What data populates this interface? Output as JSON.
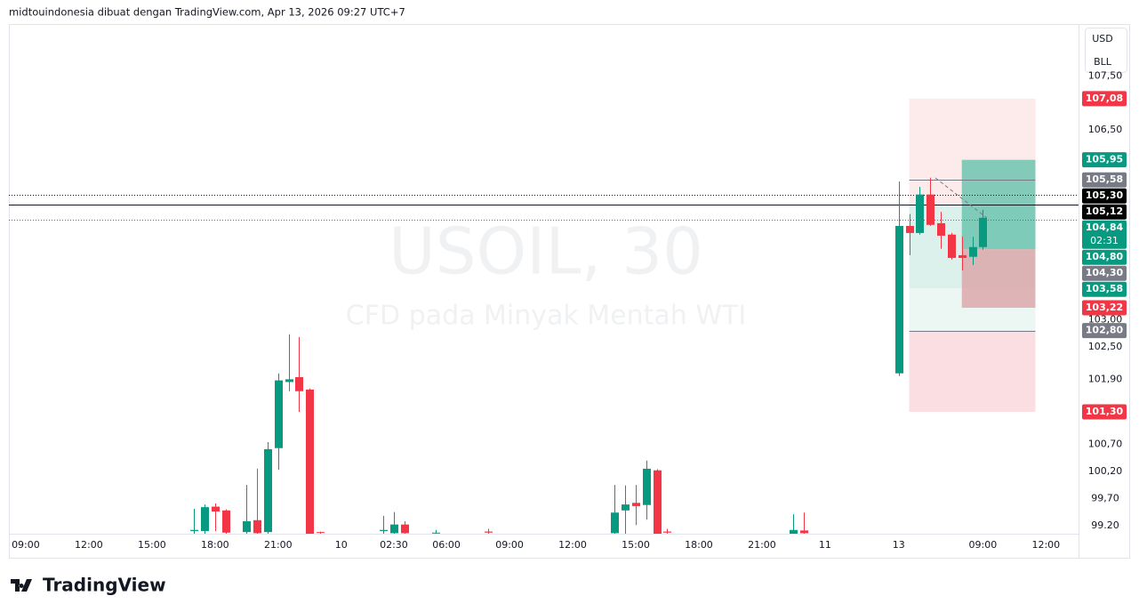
{
  "header": "midtouindonesia dibuat dengan TradingView.com, Apr 13, 2026 09:27 UTC+7",
  "footer": "TradingView",
  "currency": [
    "USD",
    "BLL"
  ],
  "chart_data": {
    "type": "candlestick",
    "title": "USOIL, 30",
    "subtitle": "CFD pada Minyak Mentah WTI",
    "up_color": "#089981",
    "down_color": "#f23645",
    "xlim": [
      -1.6,
      100.1
    ],
    "ylim": [
      99.05,
      108.44
    ],
    "xticks": [
      {
        "value": 0,
        "label": "09:00"
      },
      {
        "value": 6,
        "label": "12:00"
      },
      {
        "value": 12,
        "label": "15:00"
      },
      {
        "value": 18,
        "label": "18:00"
      },
      {
        "value": 24,
        "label": "21:00"
      },
      {
        "value": 30,
        "label": "10"
      },
      {
        "value": 35,
        "label": "02:30"
      },
      {
        "value": 40,
        "label": "06:00"
      },
      {
        "value": 46,
        "label": "09:00"
      },
      {
        "value": 52,
        "label": "12:00"
      },
      {
        "value": 58,
        "label": "15:00"
      },
      {
        "value": 64,
        "label": "18:00"
      },
      {
        "value": 70,
        "label": "21:00"
      },
      {
        "value": 76,
        "label": "11"
      },
      {
        "value": 83,
        "label": "13"
      },
      {
        "value": 91,
        "label": "09:00"
      },
      {
        "value": 97,
        "label": "12:00"
      }
    ],
    "yticks": [
      {
        "value": 107.5,
        "label": "107,50"
      },
      {
        "value": 106.5,
        "label": "106,50"
      },
      {
        "value": 103,
        "label": "103,00"
      },
      {
        "value": 102.5,
        "label": "102,50"
      },
      {
        "value": 101.9,
        "label": "101,90"
      },
      {
        "value": 100.7,
        "label": "100,70"
      },
      {
        "value": 100.2,
        "label": "100,20"
      },
      {
        "value": 99.7,
        "label": "99,70"
      },
      {
        "value": 99.2,
        "label": "99.20"
      }
    ],
    "grid": false,
    "x": [
      16,
      17,
      18,
      19,
      21,
      22,
      23,
      24,
      25,
      26,
      27,
      28,
      34,
      35,
      36,
      39,
      44,
      56,
      57,
      58,
      59,
      60,
      61,
      73,
      74,
      83,
      84,
      85,
      86,
      87,
      88,
      89,
      90,
      91
    ],
    "open": [
      99.1,
      99.1,
      99.55,
      99.48,
      99.08,
      99.3,
      99.08,
      100.63,
      101.85,
      101.94,
      101.71,
      99.08,
      99.1,
      99.06,
      99.22,
      99.06,
      99.09,
      99.06,
      99.48,
      99.62,
      99.58,
      100.22,
      99.09,
      99.05,
      99.11,
      102.01,
      104.73,
      104.6,
      105.31,
      104.78,
      104.57,
      104.19,
      104.16,
      104.34
    ],
    "high": [
      99.51,
      99.59,
      99.61,
      99.5,
      99.95,
      100.25,
      100.74,
      102.01,
      102.73,
      102.68,
      101.73,
      99.09,
      99.38,
      99.45,
      99.28,
      99.12,
      99.14,
      99.95,
      99.94,
      99.95,
      100.4,
      100.24,
      99.14,
      99.41,
      99.44,
      105.55,
      104.95,
      105.45,
      105.62,
      104.99,
      104.6,
      104.53,
      104.53,
      105.03
    ],
    "low": [
      99.05,
      99.05,
      99.1,
      99.05,
      99.05,
      99.05,
      99.05,
      100.23,
      101.68,
      101.3,
      99.05,
      99.05,
      99.05,
      99.05,
      99.05,
      99.05,
      99.05,
      99.05,
      99.05,
      99.21,
      99.31,
      99.05,
      99.05,
      99.05,
      99.05,
      101.96,
      104.19,
      104.57,
      104.73,
      104.31,
      104.11,
      103.91,
      104.01,
      104.29
    ],
    "close": [
      99.12,
      99.54,
      99.46,
      99.07,
      99.28,
      99.06,
      100.61,
      101.88,
      101.9,
      101.68,
      99.05,
      99.07,
      99.12,
      99.22,
      99.06,
      99.07,
      99.07,
      99.44,
      99.59,
      99.56,
      100.25,
      99.05,
      99.07,
      99.12,
      99.06,
      104.73,
      104.6,
      105.31,
      104.75,
      104.55,
      104.14,
      104.14,
      104.34,
      104.88
    ],
    "boxes": [
      {
        "x": [
          84,
          96
        ],
        "y": [
          107.08,
          105.12
        ],
        "color": "#fde6e8"
      },
      {
        "x": [
          84,
          96
        ],
        "y": [
          105.12,
          103.58
        ],
        "color": "#d6efe8"
      },
      {
        "x": [
          84,
          96
        ],
        "y": [
          103.58,
          102.8
        ],
        "color": "#e9f5f1"
      },
      {
        "x": [
          84,
          96
        ],
        "y": [
          102.8,
          101.3
        ],
        "color": "#fad8dc"
      },
      {
        "x": [
          89,
          96
        ],
        "y": [
          105.95,
          104.3
        ],
        "color": "#6fc4b0"
      },
      {
        "x": [
          89,
          96
        ],
        "y": [
          104.3,
          103.22
        ],
        "color": "#dca8ac"
      }
    ],
    "price_labels": [
      {
        "value": 107.08,
        "label": "107,08",
        "color": "#f23645"
      },
      {
        "value": 105.95,
        "label": "105,95",
        "color": "#089981"
      },
      {
        "value": 105.58,
        "label": "105,58",
        "color": "#787b86",
        "line": "solid",
        "line_color": "#787b86"
      },
      {
        "value": 105.3,
        "label": "105,30",
        "color": "#000000",
        "line": "dotted",
        "line_color": "#131722"
      },
      {
        "value": 105.12,
        "label": "105,12",
        "color": "#000000",
        "line": "solid",
        "line_color": "#131722"
      },
      {
        "value": 104.84,
        "label": "104,84",
        "color": "#089981",
        "countdown": "02:31",
        "line": "dotted",
        "line_color": "#089981"
      },
      {
        "value": 104.8,
        "label": "104,80",
        "color": "#089981"
      },
      {
        "value": 104.3,
        "label": "104,30",
        "color": "#787b86"
      },
      {
        "value": 103.58,
        "label": "103,58",
        "color": "#089981"
      },
      {
        "value": 103.22,
        "label": "103,22",
        "color": "#f23645"
      },
      {
        "value": 102.8,
        "label": "102,80",
        "color": "#787b86",
        "line": "solid",
        "line_color": "#787b86"
      },
      {
        "value": 101.3,
        "label": "101,30",
        "color": "#f23645"
      }
    ]
  }
}
